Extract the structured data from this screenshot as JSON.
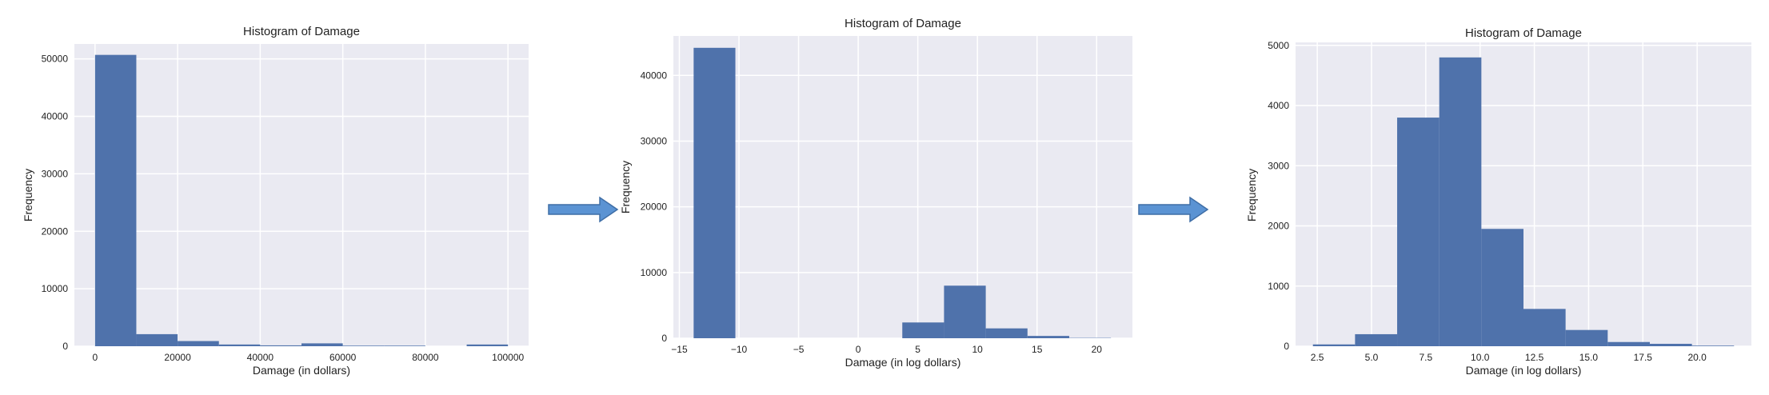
{
  "colors": {
    "bar": "#4f72ab",
    "plot_bg": "#eaeaf2",
    "grid": "#ffffff",
    "arrow": "#5b93d3",
    "text": "#222222"
  },
  "arrows": [
    {
      "icon": "right-arrow-icon"
    },
    {
      "icon": "right-arrow-icon"
    }
  ],
  "chart_data": [
    {
      "type": "bar",
      "title": "Histogram of Damage",
      "xlabel": "Damage (in dollars)",
      "ylabel": "Frequency",
      "grid": true,
      "xlim": [
        -5000,
        105000
      ],
      "ylim": [
        0,
        52600
      ],
      "xticks": [
        0,
        20000,
        40000,
        60000,
        80000,
        100000
      ],
      "xtick_labels": [
        "0",
        "20000",
        "40000",
        "60000",
        "80000",
        "100000"
      ],
      "yticks": [
        0,
        10000,
        20000,
        30000,
        40000,
        50000
      ],
      "ytick_labels": [
        "0",
        "10000",
        "20000",
        "30000",
        "40000",
        "50000"
      ],
      "bins": [
        {
          "x0": 0,
          "x1": 10000,
          "count": 50700
        },
        {
          "x0": 10000,
          "x1": 20000,
          "count": 2100
        },
        {
          "x0": 20000,
          "x1": 30000,
          "count": 900
        },
        {
          "x0": 30000,
          "x1": 40000,
          "count": 300
        },
        {
          "x0": 40000,
          "x1": 50000,
          "count": 150
        },
        {
          "x0": 50000,
          "x1": 60000,
          "count": 500
        },
        {
          "x0": 60000,
          "x1": 70000,
          "count": 100
        },
        {
          "x0": 70000,
          "x1": 80000,
          "count": 100
        },
        {
          "x0": 80000,
          "x1": 90000,
          "count": 0
        },
        {
          "x0": 90000,
          "x1": 100000,
          "count": 300
        }
      ]
    },
    {
      "type": "bar",
      "title": "Histogram of Damage",
      "xlabel": "Damage (in log dollars)",
      "ylabel": "Frequency",
      "grid": true,
      "xlim": [
        -15.5,
        23
      ],
      "ylim": [
        0,
        46000
      ],
      "xticks": [
        -15,
        -10,
        -5,
        0,
        5,
        10,
        15,
        20
      ],
      "xtick_labels": [
        "−15",
        "−10",
        "−5",
        "0",
        "5",
        "10",
        "15",
        "20"
      ],
      "yticks": [
        0,
        10000,
        20000,
        30000,
        40000
      ],
      "ytick_labels": [
        "0",
        "10000",
        "20000",
        "30000",
        "40000"
      ],
      "bins": [
        {
          "x0": -13.8,
          "x1": -10.3,
          "count": 44200
        },
        {
          "x0": -10.3,
          "x1": -6.8,
          "count": 0
        },
        {
          "x0": -6.8,
          "x1": -3.3,
          "count": 0
        },
        {
          "x0": -3.3,
          "x1": 0.2,
          "count": 0
        },
        {
          "x0": 0.2,
          "x1": 3.7,
          "count": 0
        },
        {
          "x0": 3.7,
          "x1": 7.2,
          "count": 2400
        },
        {
          "x0": 7.2,
          "x1": 10.7,
          "count": 8000
        },
        {
          "x0": 10.7,
          "x1": 14.2,
          "count": 1500
        },
        {
          "x0": 14.2,
          "x1": 17.7,
          "count": 350
        },
        {
          "x0": 17.7,
          "x1": 21.2,
          "count": 50
        }
      ]
    },
    {
      "type": "bar",
      "title": "Histogram of Damage",
      "xlabel": "Damage (in log dollars)",
      "ylabel": "Frequency",
      "grid": true,
      "xlim": [
        1.5,
        22.5
      ],
      "ylim": [
        0,
        5050
      ],
      "xticks": [
        2.5,
        5.0,
        7.5,
        10.0,
        12.5,
        15.0,
        17.5,
        20.0
      ],
      "xtick_labels": [
        "2.5",
        "5.0",
        "7.5",
        "10.0",
        "12.5",
        "15.0",
        "17.5",
        "20.0"
      ],
      "yticks": [
        0,
        1000,
        2000,
        3000,
        4000,
        5000
      ],
      "ytick_labels": [
        "0",
        "1000",
        "2000",
        "3000",
        "4000",
        "5000"
      ],
      "bins": [
        {
          "x0": 2.3,
          "x1": 4.24,
          "count": 30
        },
        {
          "x0": 4.24,
          "x1": 6.18,
          "count": 200
        },
        {
          "x0": 6.18,
          "x1": 8.12,
          "count": 3800
        },
        {
          "x0": 8.12,
          "x1": 10.06,
          "count": 4800
        },
        {
          "x0": 10.06,
          "x1": 12.0,
          "count": 1950
        },
        {
          "x0": 12.0,
          "x1": 13.94,
          "count": 620
        },
        {
          "x0": 13.94,
          "x1": 15.88,
          "count": 270
        },
        {
          "x0": 15.88,
          "x1": 17.82,
          "count": 70
        },
        {
          "x0": 17.82,
          "x1": 19.76,
          "count": 40
        },
        {
          "x0": 19.76,
          "x1": 21.7,
          "count": 10
        }
      ]
    }
  ]
}
